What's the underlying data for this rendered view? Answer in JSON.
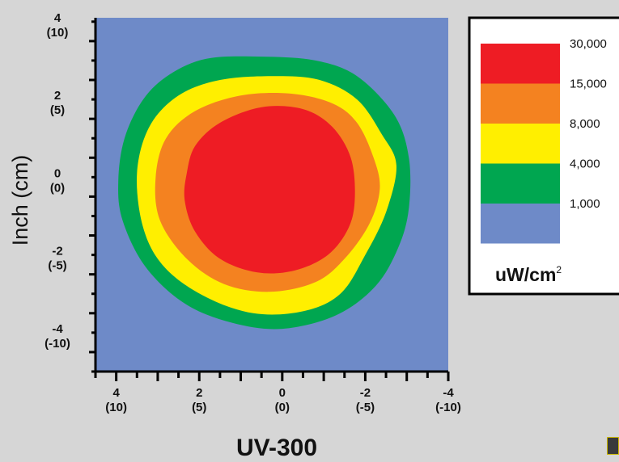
{
  "chart_data": {
    "type": "heatmap",
    "title": "UV-300",
    "ylabel": "Inch (cm)",
    "xlabel": "",
    "x_ticks": [
      {
        "value": 4,
        "label": "4",
        "sub": "(10)"
      },
      {
        "value": 2,
        "label": "2",
        "sub": "(5)"
      },
      {
        "value": 0,
        "label": "0",
        "sub": "(0)"
      },
      {
        "value": -2,
        "label": "-2",
        "sub": "(-5)"
      },
      {
        "value": -4,
        "label": "-4",
        "sub": "(-10)"
      }
    ],
    "y_ticks": [
      {
        "value": 4,
        "label": "4",
        "sub": "(10)"
      },
      {
        "value": 2,
        "label": "2",
        "sub": "(5)"
      },
      {
        "value": 0,
        "label": "0",
        "sub": "(0)"
      },
      {
        "value": -2,
        "label": "-2",
        "sub": "(-5)"
      },
      {
        "value": -4,
        "label": "-4",
        "sub": "(-10)"
      }
    ],
    "xlim": [
      4.5,
      -4
    ],
    "ylim": [
      -4.5,
      4.6
    ],
    "minor_tick_step": 0.5,
    "grid": false,
    "background_color": "#6e8ac8",
    "legend": {
      "placement": "right",
      "unit": "uW/cm",
      "unit_superscript": "2",
      "bands": [
        {
          "label": "30,000",
          "color": "#ee1c24"
        },
        {
          "label": "15,000",
          "color": "#f48220"
        },
        {
          "label": "8,000",
          "color": "#ffef00"
        },
        {
          "label": "4,000",
          "color": "#00a650"
        },
        {
          "label": "1,000",
          "color": "#6e8ac8"
        }
      ]
    },
    "contours": [
      {
        "level": 1000,
        "color": "#00a650",
        "points": [
          [
            3.95,
            0.4
          ],
          [
            3.8,
            1.5
          ],
          [
            3.35,
            2.5
          ],
          [
            2.7,
            3.15
          ],
          [
            1.8,
            3.55
          ],
          [
            0.5,
            3.6
          ],
          [
            -0.8,
            3.5
          ],
          [
            -1.8,
            3.1
          ],
          [
            -2.7,
            2.1
          ],
          [
            -3.05,
            1.0
          ],
          [
            -3.05,
            -0.3
          ],
          [
            -2.8,
            -1.3
          ],
          [
            -2.25,
            -2.3
          ],
          [
            -1.3,
            -3.05
          ],
          [
            0,
            -3.4
          ],
          [
            1.2,
            -3.25
          ],
          [
            2.35,
            -2.75
          ],
          [
            3.3,
            -1.8
          ],
          [
            3.85,
            -0.6
          ]
        ]
      },
      {
        "level": 4000,
        "color": "#ffef00",
        "points": [
          [
            3.5,
            0.6
          ],
          [
            3.2,
            1.8
          ],
          [
            2.5,
            2.6
          ],
          [
            1.5,
            3.0
          ],
          [
            0.2,
            3.1
          ],
          [
            -0.9,
            3.0
          ],
          [
            -1.8,
            2.5
          ],
          [
            -2.4,
            1.6
          ],
          [
            -2.75,
            0.8
          ],
          [
            -2.5,
            -0.4
          ],
          [
            -2.0,
            -1.5
          ],
          [
            -1.4,
            -2.5
          ],
          [
            -0.5,
            -2.95
          ],
          [
            0.7,
            -3.0
          ],
          [
            1.9,
            -2.55
          ],
          [
            2.85,
            -1.8
          ],
          [
            3.35,
            -0.8
          ]
        ]
      },
      {
        "level": 8000,
        "color": "#f48220",
        "points": [
          [
            3.05,
            0.5
          ],
          [
            2.8,
            1.5
          ],
          [
            2.1,
            2.2
          ],
          [
            1.0,
            2.6
          ],
          [
            -0.2,
            2.65
          ],
          [
            -1.2,
            2.4
          ],
          [
            -1.8,
            1.9
          ],
          [
            -2.2,
            1.0
          ],
          [
            -2.35,
            0.2
          ],
          [
            -2.1,
            -0.7
          ],
          [
            -1.5,
            -1.6
          ],
          [
            -0.8,
            -2.2
          ],
          [
            0.3,
            -2.45
          ],
          [
            1.4,
            -2.25
          ],
          [
            2.3,
            -1.6
          ],
          [
            2.95,
            -0.6
          ]
        ]
      },
      {
        "level": 15000,
        "color": "#ee1c24",
        "points": [
          [
            2.3,
            0.6
          ],
          [
            2.1,
            1.3
          ],
          [
            1.5,
            1.9
          ],
          [
            0.5,
            2.3
          ],
          [
            -0.5,
            2.25
          ],
          [
            -1.2,
            1.8
          ],
          [
            -1.65,
            1.0
          ],
          [
            -1.75,
            0.0
          ],
          [
            -1.6,
            -0.8
          ],
          [
            -1.1,
            -1.5
          ],
          [
            -0.3,
            -1.9
          ],
          [
            0.6,
            -1.95
          ],
          [
            1.5,
            -1.6
          ],
          [
            2.1,
            -0.9
          ],
          [
            2.35,
            -0.1
          ]
        ]
      }
    ]
  }
}
